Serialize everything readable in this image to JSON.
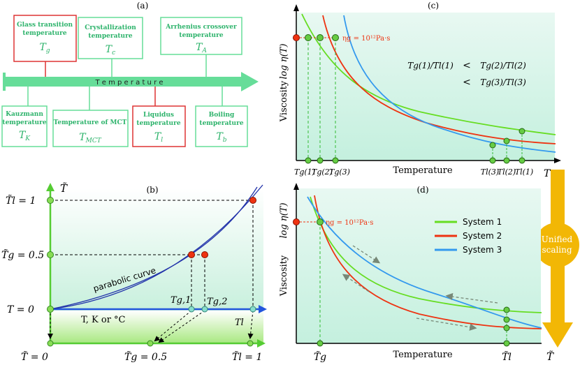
{
  "panel_a": {
    "label": "(a)",
    "arrow_label": "T e m p e r a t u r e",
    "boxes": [
      {
        "line1": "Glass transition",
        "line2": "temperature",
        "symbol": "T",
        "sub": "g",
        "highlight": true
      },
      {
        "line1": "Crystallization",
        "line2": "temperature",
        "symbol": "T",
        "sub": "c",
        "highlight": false
      },
      {
        "line1": "Arrhenius crossover",
        "line2": "temperature",
        "symbol": "T",
        "sub": "A",
        "highlight": false
      },
      {
        "line1": "Kauzmann",
        "line2": "temperature",
        "symbol": "T",
        "sub": "K",
        "highlight": false
      },
      {
        "line1": "Temperature of MCT",
        "line2": "",
        "symbol": "T",
        "sub": "MCT",
        "highlight": false
      },
      {
        "line1": "Liquidus",
        "line2": "temperature",
        "symbol": "T",
        "sub": "l",
        "highlight": true
      },
      {
        "line1": "Boiling",
        "line2": "temperature",
        "symbol": "T",
        "sub": "b",
        "highlight": false
      }
    ]
  },
  "panel_b": {
    "label": "(b)",
    "y_axis_symbol": "T̃",
    "ylabel_top": "T̃l = 1",
    "ylabel_mid": "T̃g = 0.5",
    "ylabel_zero": "T = 0",
    "curve_label": "parabolic curve",
    "x_axis_label": "T, K or °C",
    "tg1_label": "Tg,1",
    "tg2_label": "Tg,2",
    "tl_label": "Tl",
    "bottom_left": "T̃ = 0",
    "bottom_mid": "T̃g = 0.5",
    "bottom_right": "T̃l = 1"
  },
  "panel_c": {
    "label": "(c)",
    "ylabel": "Viscosity",
    "yaxis_top": "log η(T)",
    "eta_label": "ηg = 10¹²Pa·s",
    "xlabel": "Temperature",
    "x_axis_end": "T",
    "tick_labels": [
      "Tg(1)",
      "Tg(2)",
      "Tg(3)",
      "Tl(3)",
      "Tl(2)",
      "Tl(1)"
    ],
    "ratio_1": "Tg(1)/Tl(1)",
    "ratio_2": "Tg(2)/Tl(2)",
    "ratio_3": "Tg(3)/Tl(3)",
    "lt": "<"
  },
  "panel_d": {
    "label": "(d)",
    "ylabel": "Viscosity",
    "yaxis_top": "log η(T)",
    "eta_label": "ηg = 10¹²Pa·s",
    "xlabel": "Temperature",
    "tick_tg": "T̃g",
    "tick_tl": "T̃l",
    "x_axis_end": "T̃",
    "legend": [
      {
        "name": "System 1",
        "color": "#66dd22"
      },
      {
        "name": "System 2",
        "color": "#ee3311"
      },
      {
        "name": "System 3",
        "color": "#3399ee"
      }
    ]
  },
  "unified": {
    "line1": "Unified",
    "line2": "scaling"
  },
  "colors": {
    "green": "#55cc33",
    "red": "#ee3311",
    "blue": "#3399ee",
    "box_green": "#66dd99",
    "box_red": "#dd3333",
    "gold": "#f2b705"
  }
}
